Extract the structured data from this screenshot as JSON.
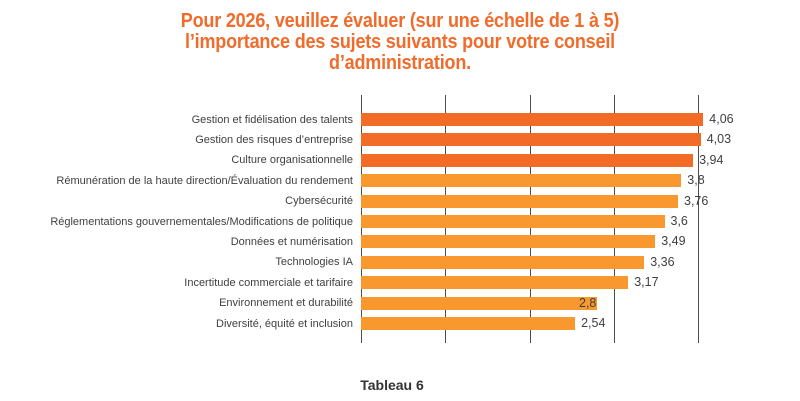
{
  "title": {
    "text": "Pour 2026, veuillez évaluer (sur une échelle de 1 à 5)\nl’importance des sujets suivants pour votre conseil\nd’administration."
  },
  "caption": "Tableau 6",
  "colors": {
    "title": "#F16B2B",
    "bar_dark": "#F26C27",
    "bar_light": "#F8982F",
    "grid": "#4D4D4D",
    "text": "#3F3F3F",
    "caption": "#333333",
    "background": "#FFFFFF"
  },
  "chart_data": {
    "type": "bar",
    "orientation": "horizontal",
    "title": "Pour 2026, veuillez évaluer (sur une échelle de 1 à 5) l’importance des sujets suivants pour votre conseil d’administration.",
    "categories": [
      "Gestion et fidélisation des talents",
      "Gestion des risques d’entreprise",
      "Culture organisationnelle",
      "Rémunération de la haute direction/Évaluation du rendement",
      "Cybersécurité",
      "Réglementations gouvernementales/Modifications de politique",
      "Données et numérisation",
      "Technologies IA",
      "Incertitude commerciale et tarifaire",
      "Environnement et durabilité",
      "Diversité, équité et inclusion"
    ],
    "values": [
      4.06,
      4.03,
      3.94,
      3.8,
      3.76,
      3.6,
      3.49,
      3.36,
      3.17,
      2.8,
      2.54
    ],
    "value_labels": [
      "4,06",
      "4,03",
      "3,94",
      "3,8",
      "3,76",
      "3,6",
      "3,49",
      "3,36",
      "3,17",
      "2,8",
      "2,54"
    ],
    "bar_shades": [
      "dark",
      "dark",
      "dark",
      "light",
      "light",
      "light",
      "light",
      "light",
      "light",
      "light",
      "light"
    ],
    "value_label_inside": [
      false,
      false,
      false,
      false,
      false,
      false,
      false,
      false,
      false,
      true,
      false
    ],
    "xlim": [
      0,
      5
    ],
    "gridline_values": [
      0,
      1,
      2,
      3,
      4
    ],
    "grid": true,
    "legend": false,
    "xlabel": "",
    "ylabel": ""
  }
}
